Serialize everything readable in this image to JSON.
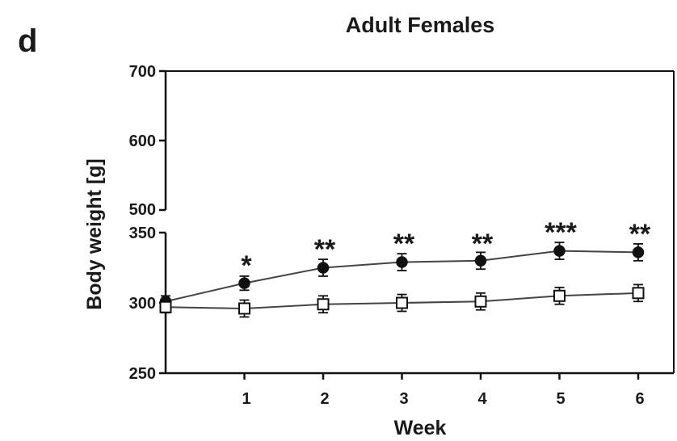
{
  "panel_letter": "d",
  "chart_data": {
    "type": "line",
    "title": "Adult Females",
    "xlabel": "Week",
    "ylabel": "Body weight [g]",
    "x": [
      0,
      1,
      2,
      3,
      4,
      5,
      6
    ],
    "x_tick_labels": [
      "1",
      "2",
      "3",
      "4",
      "5",
      "6"
    ],
    "y_axis_segments": [
      {
        "range": [
          250,
          350
        ],
        "ticks": [
          "250",
          "300",
          "350"
        ]
      },
      {
        "range": [
          500,
          700
        ],
        "ticks": [
          "500",
          "600",
          "700"
        ]
      }
    ],
    "series": [
      {
        "marker": "filled-circle",
        "color": "#111111",
        "values": [
          301,
          314,
          325,
          329,
          330,
          337,
          336
        ],
        "errors": [
          4,
          5,
          6,
          6,
          6,
          6,
          6
        ]
      },
      {
        "marker": "open-square",
        "color": "#111111",
        "values": [
          297,
          296,
          299,
          300,
          301,
          305,
          307
        ],
        "errors": [
          4,
          6,
          6,
          6,
          6,
          6,
          6
        ]
      }
    ],
    "annotations": [
      {
        "x": 1,
        "text": "*"
      },
      {
        "x": 2,
        "text": "**"
      },
      {
        "x": 3,
        "text": "**"
      },
      {
        "x": 4,
        "text": "**"
      },
      {
        "x": 5,
        "text": "***"
      },
      {
        "x": 6,
        "text": "**"
      }
    ],
    "grid": false,
    "legend": "none"
  }
}
